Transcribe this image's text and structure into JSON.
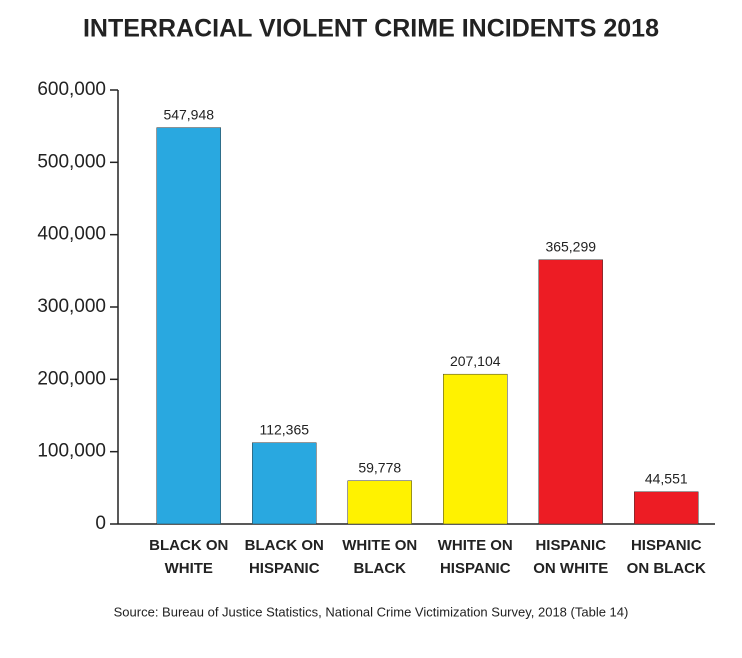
{
  "chart_data": {
    "type": "bar",
    "title": "INTERRACIAL VIOLENT CRIME INCIDENTS 2018",
    "categories": [
      [
        "BLACK ON",
        "WHITE"
      ],
      [
        "BLACK ON",
        "HISPANIC"
      ],
      [
        "WHITE ON",
        "BLACK"
      ],
      [
        "WHITE ON",
        "HISPANIC"
      ],
      [
        "HISPANIC",
        "ON WHITE"
      ],
      [
        "HISPANIC",
        "ON BLACK"
      ]
    ],
    "values": [
      547948,
      112365,
      59778,
      207104,
      365299,
      44551
    ],
    "value_labels": [
      "547,948",
      "112,365",
      "59,778",
      "207,104",
      "365,299",
      "44,551"
    ],
    "colors": [
      "#29a8e0",
      "#29a8e0",
      "#fff200",
      "#fff200",
      "#ed1c24",
      "#ed1c24"
    ],
    "ylim": [
      0,
      600000
    ],
    "yticks": [
      0,
      {
        "value": 100000,
        "label": "100,000"
      },
      {
        "value": 200000,
        "label": "200,000"
      },
      {
        "value": 300000,
        "label": "300,000"
      },
      {
        "value": 400000,
        "label": "400,000"
      },
      {
        "value": 500000,
        "label": "500,000"
      },
      {
        "value": 600000,
        "label": "600,000"
      }
    ],
    "source": "Source: Bureau of Justice Statistics, National Crime Victimization Survey, 2018 (Table 14)"
  }
}
